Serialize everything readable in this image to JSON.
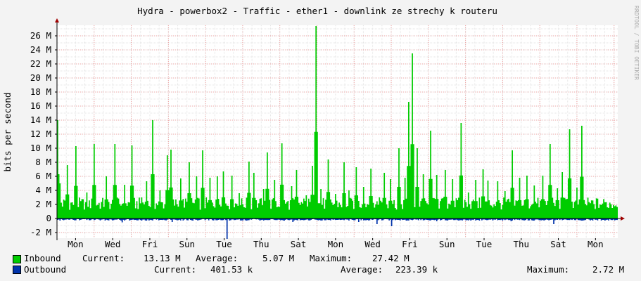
{
  "chart_data": {
    "type": "area",
    "title": "Hydra - powerbox2 - Traffic - ether1 - downlink ze strechy k routeru",
    "ylabel": "bits per second",
    "watermark": "RRDTOOL / TOBI OETIKER",
    "ylim": [
      -2.8,
      27.5
    ],
    "y_ticks": [
      -2,
      0,
      2,
      4,
      6,
      8,
      10,
      12,
      14,
      16,
      18,
      20,
      22,
      24,
      26
    ],
    "y_tick_labels": [
      "-2 M",
      "0",
      "2 M",
      "4 M",
      "6 M",
      "8 M",
      "10 M",
      "12 M",
      "14 M",
      "16 M",
      "18 M",
      "20 M",
      "22 M",
      "24 M",
      "26 M"
    ],
    "y_unit": "M",
    "x_days": 15.1,
    "x_tick_labels": [
      "Mon",
      "Wed",
      "Fri",
      "Sun",
      "Tue",
      "Thu",
      "Sat",
      "Mon",
      "Wed",
      "Fri",
      "Sun",
      "Tue",
      "Thu",
      "Sat",
      "Mon"
    ],
    "x_tick_positions_days": [
      0.5,
      1.5,
      2.5,
      3.5,
      4.5,
      5.5,
      6.5,
      7.5,
      8.5,
      9.5,
      10.5,
      11.5,
      12.5,
      13.5,
      14.5
    ],
    "grid": true,
    "colors": {
      "inbound": "#00cc00",
      "outbound": "#0033aa",
      "grid_major": "#f0a0a0",
      "grid_minor": "#e6e6e6",
      "axis": "#000000",
      "arrow": "#a00000",
      "background": "#f3f3f3",
      "plot_bg": "#ffffff"
    },
    "series": [
      {
        "name": "Inbound",
        "peaks": [
          [
            0.0,
            14.0
          ],
          [
            0.05,
            5.0
          ],
          [
            0.25,
            7.6
          ],
          [
            0.5,
            10.3
          ],
          [
            0.8,
            3.7
          ],
          [
            1.0,
            10.6
          ],
          [
            1.3,
            6.0
          ],
          [
            1.55,
            10.6
          ],
          [
            1.8,
            4.8
          ],
          [
            2.0,
            10.4
          ],
          [
            2.25,
            3.0
          ],
          [
            2.4,
            5.3
          ],
          [
            2.55,
            14.0
          ],
          [
            2.75,
            4.0
          ],
          [
            2.95,
            9.0
          ],
          [
            3.05,
            9.8
          ],
          [
            3.3,
            5.7
          ],
          [
            3.55,
            8.0
          ],
          [
            3.75,
            6.0
          ],
          [
            3.9,
            9.7
          ],
          [
            4.1,
            5.8
          ],
          [
            4.3,
            6.0
          ],
          [
            4.45,
            6.7
          ],
          [
            4.7,
            6.1
          ],
          [
            4.9,
            3.6
          ],
          [
            5.15,
            8.1
          ],
          [
            5.3,
            6.5
          ],
          [
            5.55,
            4.2
          ],
          [
            5.65,
            9.4
          ],
          [
            5.85,
            5.5
          ],
          [
            6.05,
            10.7
          ],
          [
            6.3,
            4.6
          ],
          [
            6.45,
            6.9
          ],
          [
            6.7,
            3.3
          ],
          [
            6.85,
            7.5
          ],
          [
            6.95,
            27.4
          ],
          [
            7.1,
            4.2
          ],
          [
            7.3,
            8.4
          ],
          [
            7.5,
            3.5
          ],
          [
            7.7,
            8.0
          ],
          [
            7.85,
            4.0
          ],
          [
            8.05,
            7.3
          ],
          [
            8.25,
            4.5
          ],
          [
            8.45,
            7.1
          ],
          [
            8.65,
            3.0
          ],
          [
            8.8,
            6.5
          ],
          [
            8.95,
            5.6
          ],
          [
            9.2,
            10.0
          ],
          [
            9.35,
            5.8
          ],
          [
            9.45,
            16.6
          ],
          [
            9.55,
            23.5
          ],
          [
            9.7,
            10.0
          ],
          [
            9.85,
            6.3
          ],
          [
            10.05,
            12.5
          ],
          [
            10.2,
            6.2
          ],
          [
            10.45,
            6.9
          ],
          [
            10.65,
            5.6
          ],
          [
            10.85,
            13.6
          ],
          [
            11.05,
            3.7
          ],
          [
            11.25,
            5.5
          ],
          [
            11.45,
            7.0
          ],
          [
            11.6,
            5.4
          ],
          [
            11.85,
            5.3
          ],
          [
            12.05,
            3.9
          ],
          [
            12.25,
            9.7
          ],
          [
            12.45,
            5.8
          ],
          [
            12.65,
            6.1
          ],
          [
            12.85,
            4.7
          ],
          [
            13.05,
            6.1
          ],
          [
            13.25,
            10.6
          ],
          [
            13.45,
            4.3
          ],
          [
            13.6,
            6.6
          ],
          [
            13.8,
            12.7
          ],
          [
            14.0,
            4.4
          ],
          [
            14.1,
            13.2
          ]
        ],
        "current": "13.13 M",
        "average": "5.07 M",
        "maximum": "27.42 M"
      },
      {
        "name": "Outbound",
        "dips": [
          [
            0.45,
            -0.2
          ],
          [
            1.75,
            -0.55
          ],
          [
            2.4,
            -0.3
          ],
          [
            3.1,
            -0.5
          ],
          [
            3.65,
            -0.3
          ],
          [
            4.55,
            -2.9
          ],
          [
            5.45,
            -0.3
          ],
          [
            6.35,
            -0.5
          ],
          [
            7.05,
            -0.2
          ],
          [
            8.1,
            -0.5
          ],
          [
            8.6,
            -0.8
          ],
          [
            9.0,
            -1.1
          ],
          [
            10.2,
            -0.4
          ],
          [
            11.35,
            -0.3
          ],
          [
            12.2,
            -0.4
          ],
          [
            12.8,
            -0.3
          ],
          [
            13.35,
            -0.8
          ],
          [
            14.1,
            -0.3
          ]
        ],
        "current": "401.53 k",
        "average": "223.39 k",
        "maximum": "2.72 M"
      }
    ]
  },
  "legend": {
    "inbound": {
      "name": "Inbound",
      "current_label": "Current:",
      "current_value": "13.13 M",
      "average_label": "Average:",
      "average_value": "5.07 M",
      "maximum_label": "Maximum:",
      "maximum_value": "27.42 M"
    },
    "outbound": {
      "name": "Outbound",
      "current_label": "Current:",
      "current_value": "401.53 k",
      "average_label": "Average:",
      "average_value": "223.39 k",
      "maximum_label": "Maximum:",
      "maximum_value": "2.72 M"
    }
  }
}
